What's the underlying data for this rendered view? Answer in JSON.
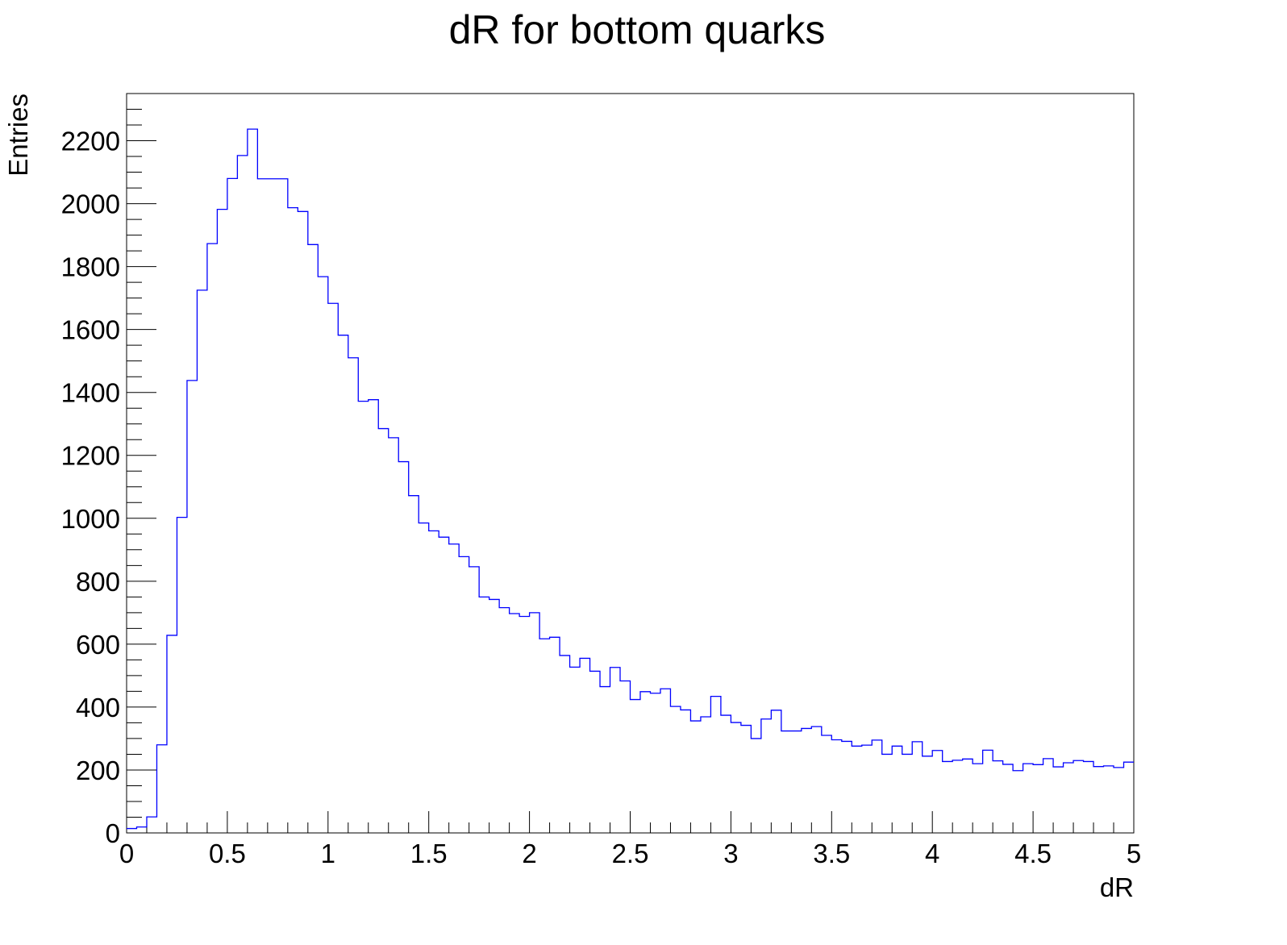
{
  "chart_data": {
    "type": "histogram",
    "title": "dR for bottom quarks",
    "xlabel": "dR",
    "ylabel": "Entries",
    "xlim": [
      0,
      5
    ],
    "ylim": [
      0,
      2350
    ],
    "bin_width": 0.05,
    "bin_edges_start": 0,
    "line_color": "#0000ff",
    "grid": false,
    "legend": "none",
    "x_major_ticks": [
      0,
      0.5,
      1,
      1.5,
      2,
      2.5,
      3,
      3.5,
      4,
      4.5,
      5
    ],
    "x_tick_labels": [
      "0",
      "0.5",
      "1",
      "1.5",
      "2",
      "2.5",
      "3",
      "3.5",
      "4",
      "4.5",
      "5"
    ],
    "x_minor_step": 0.1,
    "y_major_ticks": [
      0,
      200,
      400,
      600,
      800,
      1000,
      1200,
      1400,
      1600,
      1800,
      2000,
      2200
    ],
    "y_tick_labels": [
      "0",
      "200",
      "400",
      "600",
      "800",
      "1000",
      "1200",
      "1400",
      "1600",
      "1800",
      "2000",
      "2200"
    ],
    "y_minor_step": 50,
    "values": [
      14,
      19,
      51,
      280,
      628,
      1003,
      1438,
      1725,
      1873,
      1982,
      2080,
      2153,
      2237,
      2079,
      2079,
      2079,
      1987,
      1975,
      1870,
      1768,
      1683,
      1582,
      1510,
      1372,
      1377,
      1285,
      1256,
      1180,
      1072,
      985,
      960,
      940,
      918,
      878,
      846,
      750,
      742,
      716,
      697,
      688,
      700,
      617,
      622,
      564,
      527,
      555,
      514,
      465,
      526,
      483,
      424,
      449,
      444,
      458,
      402,
      391,
      356,
      369,
      434,
      374,
      351,
      342,
      300,
      362,
      390,
      324,
      324,
      332,
      338,
      310,
      296,
      291,
      276,
      279,
      295,
      250,
      276,
      250,
      290,
      244,
      262,
      227,
      231,
      235,
      220,
      263,
      229,
      218,
      198,
      220,
      217,
      236,
      210,
      223,
      230,
      227,
      211,
      213,
      208,
      225
    ]
  }
}
